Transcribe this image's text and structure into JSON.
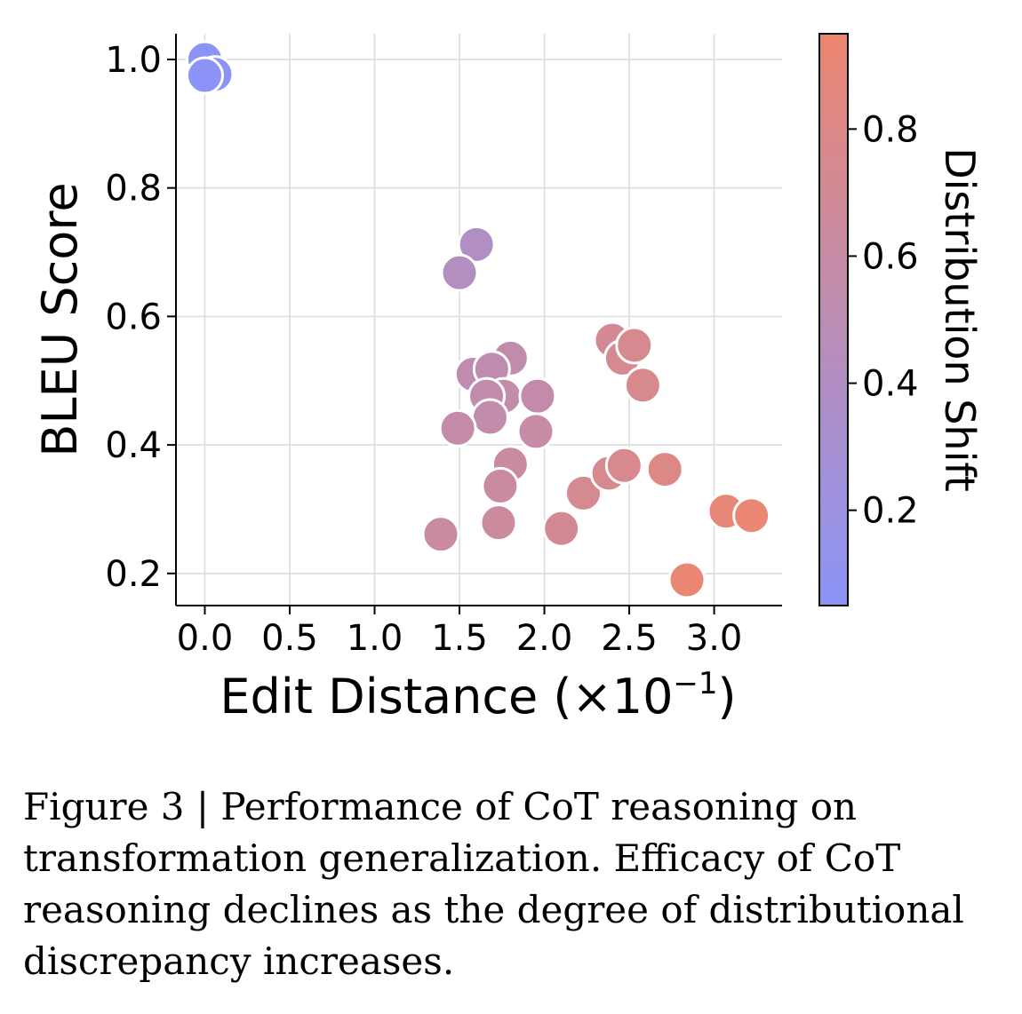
{
  "chart_data": {
    "type": "scatter",
    "xlabel": "Edit Distance (×10",
    "xlabel_exponent": "−1",
    "xlabel_close": ")",
    "ylabel": "BLEU Score",
    "colorbar_label": "Distribution Shift",
    "xlim": [
      -0.17,
      3.4
    ],
    "ylim": [
      0.15,
      1.04
    ],
    "xticks": [
      0.0,
      0.5,
      1.0,
      1.5,
      2.0,
      2.5,
      3.0
    ],
    "xtick_labels": [
      "0.0",
      "0.5",
      "1.0",
      "1.5",
      "2.0",
      "2.5",
      "3.0"
    ],
    "yticks": [
      0.2,
      0.4,
      0.6,
      0.8,
      1.0
    ],
    "ytick_labels": [
      "0.2",
      "0.4",
      "0.6",
      "0.8",
      "1.0"
    ],
    "colorbar_range": [
      0.05,
      0.95
    ],
    "colorbar_ticks": [
      0.2,
      0.4,
      0.6,
      0.8
    ],
    "colorbar_tick_labels": [
      "0.2",
      "0.4",
      "0.6",
      "0.8"
    ],
    "colormap": [
      "#8b93f7",
      "#ec8670"
    ],
    "grid": true,
    "points": [
      {
        "x": 0.0,
        "y": 1.0,
        "shift": 0.05
      },
      {
        "x": 0.06,
        "y": 0.977,
        "shift": 0.06
      },
      {
        "x": 0.0,
        "y": 0.975,
        "shift": 0.05
      },
      {
        "x": 1.6,
        "y": 0.712,
        "shift": 0.4
      },
      {
        "x": 1.5,
        "y": 0.668,
        "shift": 0.42
      },
      {
        "x": 1.8,
        "y": 0.535,
        "shift": 0.55
      },
      {
        "x": 1.58,
        "y": 0.51,
        "shift": 0.54
      },
      {
        "x": 1.69,
        "y": 0.518,
        "shift": 0.53
      },
      {
        "x": 1.76,
        "y": 0.476,
        "shift": 0.56
      },
      {
        "x": 1.66,
        "y": 0.476,
        "shift": 0.55
      },
      {
        "x": 1.96,
        "y": 0.476,
        "shift": 0.57
      },
      {
        "x": 1.68,
        "y": 0.443,
        "shift": 0.56
      },
      {
        "x": 1.49,
        "y": 0.426,
        "shift": 0.58
      },
      {
        "x": 1.95,
        "y": 0.421,
        "shift": 0.6
      },
      {
        "x": 1.8,
        "y": 0.37,
        "shift": 0.62
      },
      {
        "x": 1.74,
        "y": 0.336,
        "shift": 0.63
      },
      {
        "x": 1.73,
        "y": 0.279,
        "shift": 0.65
      },
      {
        "x": 1.39,
        "y": 0.261,
        "shift": 0.62
      },
      {
        "x": 2.1,
        "y": 0.27,
        "shift": 0.72
      },
      {
        "x": 2.23,
        "y": 0.325,
        "shift": 0.74
      },
      {
        "x": 2.38,
        "y": 0.356,
        "shift": 0.75
      },
      {
        "x": 2.47,
        "y": 0.368,
        "shift": 0.76
      },
      {
        "x": 2.71,
        "y": 0.362,
        "shift": 0.8
      },
      {
        "x": 2.4,
        "y": 0.563,
        "shift": 0.72
      },
      {
        "x": 2.46,
        "y": 0.535,
        "shift": 0.74
      },
      {
        "x": 2.53,
        "y": 0.555,
        "shift": 0.75
      },
      {
        "x": 2.58,
        "y": 0.493,
        "shift": 0.76
      },
      {
        "x": 2.84,
        "y": 0.19,
        "shift": 0.92
      },
      {
        "x": 3.07,
        "y": 0.297,
        "shift": 0.9
      },
      {
        "x": 3.22,
        "y": 0.29,
        "shift": 0.92
      }
    ]
  },
  "caption": "Figure 3 | Performance of CoT reasoning on transformation generalization. Efficacy of CoT reasoning declines as the degree of distributional discrepancy increases."
}
